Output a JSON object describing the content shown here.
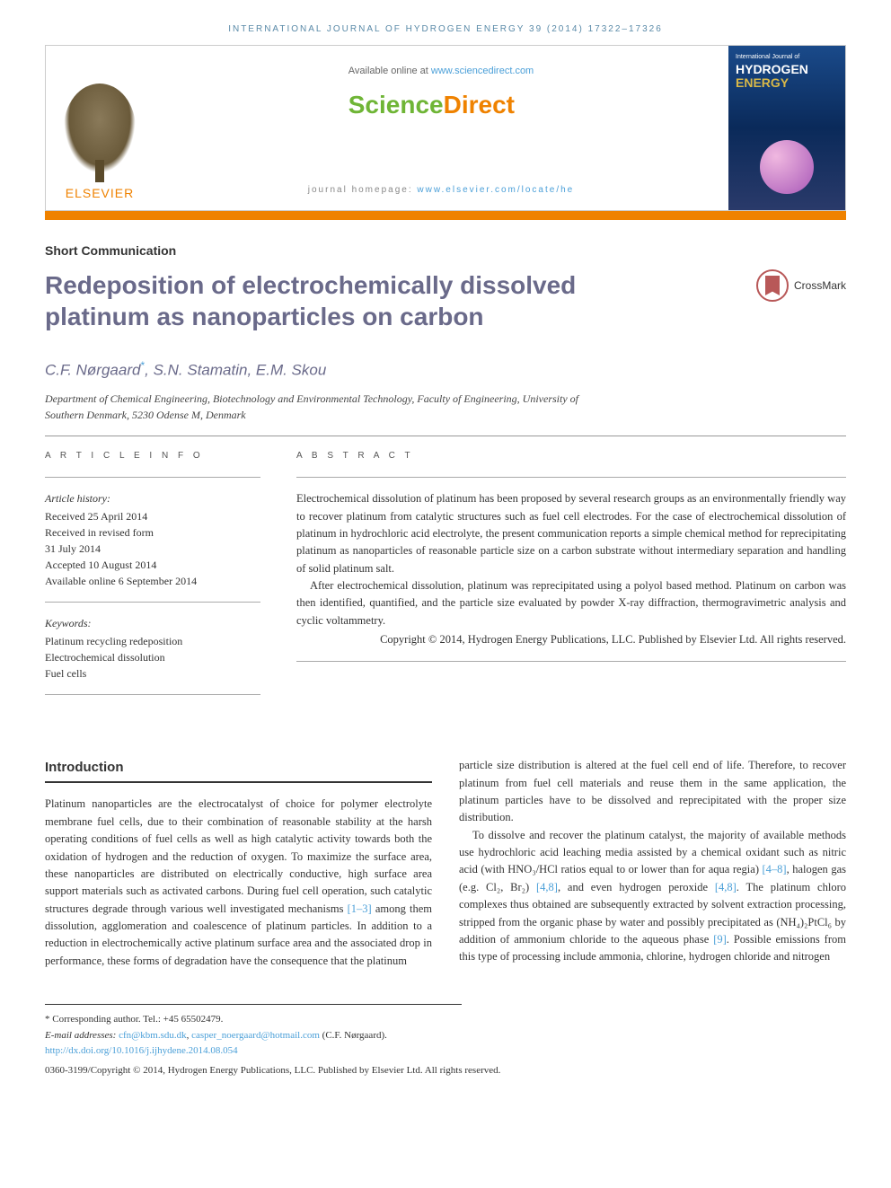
{
  "header": {
    "running_head": "INTERNATIONAL JOURNAL OF HYDROGEN ENERGY 39 (2014) 17322–17326"
  },
  "masthead": {
    "elsevier_label": "ELSEVIER",
    "available_prefix": "Available online at ",
    "available_link": "www.sciencedirect.com",
    "sd_science": "Science",
    "sd_direct": "Direct",
    "homepage_prefix": "journal homepage: ",
    "homepage_link": "www.elsevier.com/locate/he",
    "cover_small": "International Journal of",
    "cover_line1": "HYDROGEN",
    "cover_line2": "ENERGY"
  },
  "article": {
    "type": "Short Communication",
    "title": "Redeposition of electrochemically dissolved platinum as nanoparticles on carbon",
    "crossmark": "CrossMark",
    "authors": "C.F. Nørgaard",
    "authors_rest": ", S.N. Stamatin, E.M. Skou",
    "affiliation": "Department of Chemical Engineering, Biotechnology and Environmental Technology, Faculty of Engineering, University of Southern Denmark, 5230 Odense M, Denmark"
  },
  "info": {
    "label": "A R T I C L E   I N F O",
    "history_label": "Article history:",
    "received": "Received 25 April 2014",
    "revised1": "Received in revised form",
    "revised2": "31 July 2014",
    "accepted": "Accepted 10 August 2014",
    "online": "Available online 6 September 2014",
    "keywords_label": "Keywords:",
    "kw1": "Platinum recycling redeposition",
    "kw2": "Electrochemical dissolution",
    "kw3": "Fuel cells"
  },
  "abstract": {
    "label": "A B S T R A C T",
    "p1": "Electrochemical dissolution of platinum has been proposed by several research groups as an environmentally friendly way to recover platinum from catalytic structures such as fuel cell electrodes. For the case of electrochemical dissolution of platinum in hydrochloric acid electrolyte, the present communication reports a simple chemical method for reprecipitating platinum as nanoparticles of reasonable particle size on a carbon substrate without intermediary separation and handling of solid platinum salt.",
    "p2": "After electrochemical dissolution, platinum was reprecipitated using a polyol based method. Platinum on carbon was then identified, quantified, and the particle size evaluated by powder X-ray diffraction, thermogravimetric analysis and cyclic voltammetry.",
    "copyright": "Copyright © 2014, Hydrogen Energy Publications, LLC. Published by Elsevier Ltd. All rights reserved."
  },
  "intro": {
    "heading": "Introduction",
    "col1_p1a": "Platinum nanoparticles are the electrocatalyst of choice for polymer electrolyte membrane fuel cells, due to their combination of reasonable stability at the harsh operating conditions of fuel cells as well as high catalytic activity towards both the oxidation of hydrogen and the reduction of oxygen. To maximize the surface area, these nanoparticles are distributed on electrically conductive, high surface area support materials such as activated carbons. During fuel cell operation, such catalytic structures degrade through various well investigated mechanisms ",
    "ref1": "[1–3]",
    "col1_p1b": " among them dissolution, agglomeration and coalescence of platinum particles. In addition to a reduction in electrochemically active platinum surface area and the associated drop in performance, these forms of degradation have the consequence that the platinum",
    "col2_p1": "particle size distribution is altered at the fuel cell end of life. Therefore, to recover platinum from fuel cell materials and reuse them in the same application, the platinum particles have to be dissolved and reprecipitated with the proper size distribution.",
    "col2_p2a": "To dissolve and recover the platinum catalyst, the majority of available methods use hydrochloric acid leaching media assisted by a chemical oxidant such as nitric acid (with HNO₃/HCl ratios equal to or lower than for aqua regia) ",
    "ref2": "[4–8]",
    "col2_p2b": ", halogen gas (e.g. Cl₂, Br₂) ",
    "ref3": "[4,8]",
    "col2_p2c": ", and even hydrogen peroxide ",
    "ref4": "[4,8]",
    "col2_p2d": ". The platinum chloro complexes thus obtained are subsequently extracted by solvent extraction processing, stripped from the organic phase by water and possibly precipitated as (NH₄)₂PtCl₆ by addition of ammonium chloride to the aqueous phase ",
    "ref5": "[9]",
    "col2_p2e": ". Possible emissions from this type of processing include ammonia, chlorine, hydrogen chloride and nitrogen"
  },
  "footnotes": {
    "corresponding": "* Corresponding author. Tel.: +45 65502479.",
    "email_label": "E-mail addresses: ",
    "email1": "cfn@kbm.sdu.dk",
    "email_sep": ", ",
    "email2": "casper_noergaard@hotmail.com",
    "email_tail": " (C.F. Nørgaard).",
    "doi": "http://dx.doi.org/10.1016/j.ijhydene.2014.08.054",
    "issn": "0360-3199/Copyright © 2014, Hydrogen Energy Publications, LLC. Published by Elsevier Ltd. All rights reserved."
  },
  "colors": {
    "orange": "#ef8200",
    "link_blue": "#4a9fd8",
    "title_gray": "#6a6a8a",
    "sd_green": "#6fb536"
  }
}
